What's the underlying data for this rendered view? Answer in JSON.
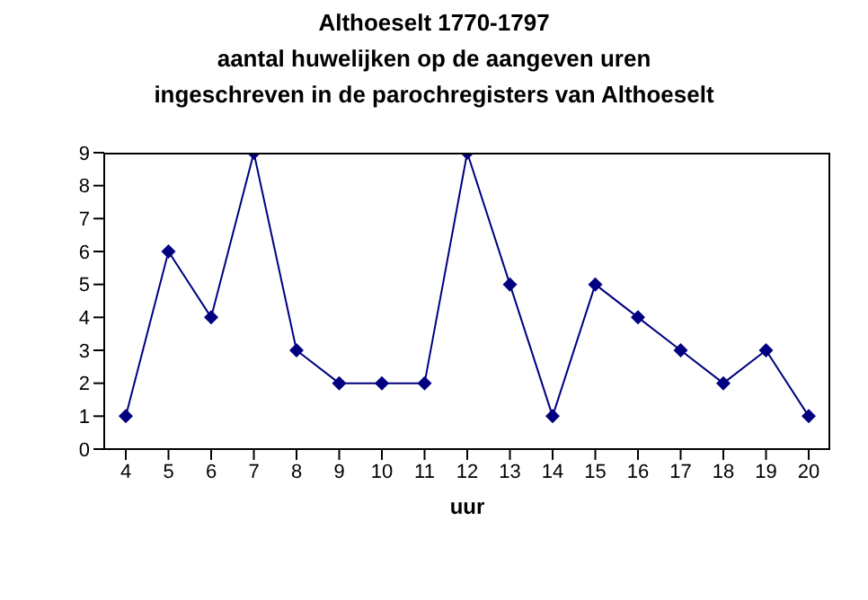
{
  "chart_data": {
    "type": "line",
    "title": "Althoeselt 1770-1797\naantal huwelijken op de aangeven uren\ningeschreven in de parochregisters van Althoeselt",
    "xlabel": "uur",
    "categories": [
      "4",
      "5",
      "6",
      "7",
      "8",
      "9",
      "10",
      "11",
      "12",
      "13",
      "14",
      "15",
      "16",
      "17",
      "18",
      "19",
      "20"
    ],
    "series": [
      {
        "color": "#000080",
        "values": [
          1,
          6,
          4,
          9,
          3,
          2,
          2,
          2,
          9,
          5,
          1,
          5,
          4,
          3,
          2,
          3,
          1
        ]
      }
    ],
    "ylim": [
      0,
      9
    ],
    "yticks": [
      0,
      1,
      2,
      3,
      4,
      5,
      6,
      7,
      8,
      9
    ],
    "grid": false,
    "marker": "diamond",
    "line_style": "solid"
  }
}
